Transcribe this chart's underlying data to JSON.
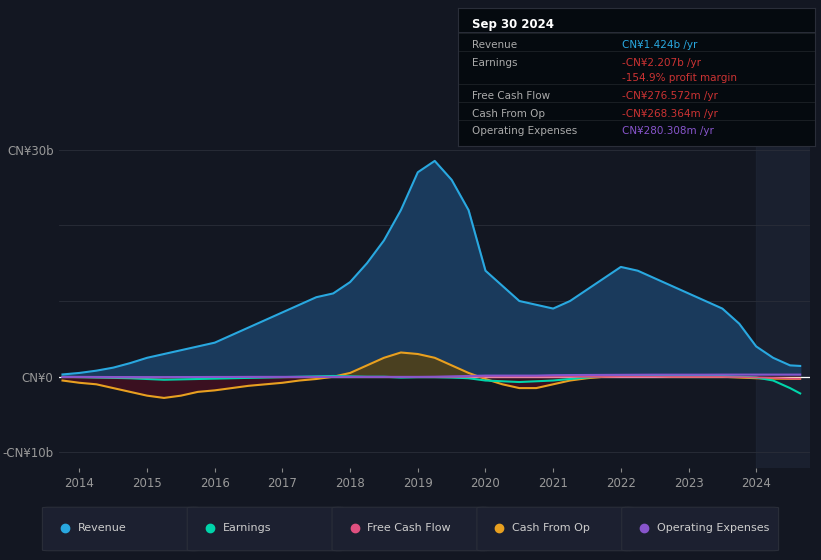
{
  "bg_color": "#131722",
  "plot_bg_color": "#131722",
  "grid_color": "#2a2e39",
  "zero_line_color": "#ffffff",
  "years": [
    2013.75,
    2014.0,
    2014.25,
    2014.5,
    2014.75,
    2015.0,
    2015.25,
    2015.5,
    2015.75,
    2016.0,
    2016.25,
    2016.5,
    2016.75,
    2017.0,
    2017.25,
    2017.5,
    2017.75,
    2018.0,
    2018.25,
    2018.5,
    2018.75,
    2019.0,
    2019.25,
    2019.5,
    2019.75,
    2020.0,
    2020.25,
    2020.5,
    2020.75,
    2021.0,
    2021.25,
    2021.5,
    2021.75,
    2022.0,
    2022.25,
    2022.5,
    2022.75,
    2023.0,
    2023.25,
    2023.5,
    2023.75,
    2024.0,
    2024.25,
    2024.5,
    2024.65
  ],
  "revenue": [
    0.3,
    0.5,
    0.8,
    1.2,
    1.8,
    2.5,
    3.0,
    3.5,
    4.0,
    4.5,
    5.5,
    6.5,
    7.5,
    8.5,
    9.5,
    10.5,
    11.0,
    12.5,
    15.0,
    18.0,
    22.0,
    27.0,
    28.5,
    26.0,
    22.0,
    14.0,
    12.0,
    10.0,
    9.5,
    9.0,
    10.0,
    11.5,
    13.0,
    14.5,
    14.0,
    13.0,
    12.0,
    11.0,
    10.0,
    9.0,
    7.0,
    4.0,
    2.5,
    1.5,
    1.424
  ],
  "earnings": [
    0.0,
    -0.05,
    -0.1,
    -0.15,
    -0.2,
    -0.3,
    -0.4,
    -0.35,
    -0.3,
    -0.25,
    -0.2,
    -0.15,
    -0.1,
    -0.05,
    0.0,
    0.05,
    0.1,
    0.05,
    0.0,
    0.0,
    -0.1,
    -0.05,
    -0.05,
    -0.1,
    -0.2,
    -0.5,
    -0.6,
    -0.7,
    -0.6,
    -0.5,
    -0.3,
    -0.1,
    0.1,
    0.2,
    0.2,
    0.15,
    0.1,
    0.1,
    0.1,
    0.1,
    0.0,
    -0.1,
    -0.5,
    -1.5,
    -2.207
  ],
  "free_cash_flow": [
    -0.05,
    -0.05,
    -0.08,
    -0.1,
    -0.1,
    -0.1,
    -0.08,
    -0.06,
    -0.05,
    -0.04,
    -0.03,
    -0.02,
    -0.02,
    -0.02,
    -0.02,
    -0.02,
    -0.02,
    -0.02,
    -0.02,
    -0.02,
    -0.02,
    -0.02,
    -0.02,
    -0.02,
    -0.02,
    -0.02,
    -0.02,
    -0.02,
    -0.02,
    -0.02,
    -0.02,
    -0.02,
    -0.02,
    -0.02,
    -0.02,
    -0.02,
    -0.02,
    -0.02,
    -0.02,
    -0.02,
    -0.05,
    -0.1,
    -0.15,
    -0.25,
    -0.276
  ],
  "cash_from_op": [
    -0.5,
    -0.8,
    -1.0,
    -1.5,
    -2.0,
    -2.5,
    -2.8,
    -2.5,
    -2.0,
    -1.8,
    -1.5,
    -1.2,
    -1.0,
    -0.8,
    -0.5,
    -0.3,
    0.0,
    0.5,
    1.5,
    2.5,
    3.2,
    3.0,
    2.5,
    1.5,
    0.5,
    -0.3,
    -1.0,
    -1.5,
    -1.5,
    -1.0,
    -0.5,
    -0.2,
    0.0,
    0.1,
    0.1,
    0.1,
    0.0,
    0.0,
    0.0,
    0.0,
    -0.1,
    -0.2,
    -0.25,
    -0.27,
    -0.268
  ],
  "operating_expenses": [
    -0.02,
    -0.02,
    -0.03,
    -0.04,
    -0.04,
    -0.05,
    -0.05,
    -0.04,
    -0.04,
    -0.03,
    -0.03,
    -0.02,
    -0.02,
    -0.02,
    -0.02,
    -0.02,
    -0.02,
    -0.02,
    -0.02,
    -0.02,
    -0.02,
    -0.02,
    0.0,
    0.05,
    0.1,
    0.15,
    0.15,
    0.15,
    0.15,
    0.2,
    0.22,
    0.23,
    0.24,
    0.25,
    0.26,
    0.27,
    0.27,
    0.27,
    0.27,
    0.28,
    0.28,
    0.28,
    0.28,
    0.28,
    0.28
  ],
  "revenue_color": "#29a8e0",
  "revenue_fill_color": "#1a3a5c",
  "earnings_color": "#00d4aa",
  "free_cash_flow_color": "#e05080",
  "cash_from_op_color": "#e8a020",
  "cash_from_op_fill_positive": "#4a4020",
  "cash_from_op_fill_negative": "#3a1020",
  "operating_expenses_color": "#8855cc",
  "ytick_labels": [
    "-CN¥10b",
    "CN¥0",
    "CN¥30b"
  ],
  "ytick_values": [
    -10,
    0,
    30
  ],
  "xtick_labels": [
    "2014",
    "2015",
    "2016",
    "2017",
    "2018",
    "2019",
    "2020",
    "2021",
    "2022",
    "2023",
    "2024"
  ],
  "xtick_positions": [
    2014,
    2015,
    2016,
    2017,
    2018,
    2019,
    2020,
    2021,
    2022,
    2023,
    2024
  ],
  "info_box_title": "Sep 30 2024",
  "info_rows": [
    {
      "label": "Revenue",
      "value": "CN¥1.424b /yr",
      "value_color": "#29a8e0"
    },
    {
      "label": "Earnings",
      "value": "-CN¥2.207b /yr",
      "value_color": "#cc3333"
    },
    {
      "label": "",
      "value": "-154.9% profit margin",
      "value_color": "#cc3333"
    },
    {
      "label": "Free Cash Flow",
      "value": "-CN¥276.572m /yr",
      "value_color": "#cc3333"
    },
    {
      "label": "Cash From Op",
      "value": "-CN¥268.364m /yr",
      "value_color": "#cc3333"
    },
    {
      "label": "Operating Expenses",
      "value": "CN¥280.308m /yr",
      "value_color": "#8855cc"
    }
  ],
  "legend_items": [
    {
      "label": "Revenue",
      "color": "#29a8e0"
    },
    {
      "label": "Earnings",
      "color": "#00d4aa"
    },
    {
      "label": "Free Cash Flow",
      "color": "#e05080"
    },
    {
      "label": "Cash From Op",
      "color": "#e8a020"
    },
    {
      "label": "Operating Expenses",
      "color": "#8855cc"
    }
  ],
  "ylim": [
    -12,
    32
  ],
  "xlim": [
    2013.7,
    2024.8
  ],
  "future_shade_start": 2024.0
}
